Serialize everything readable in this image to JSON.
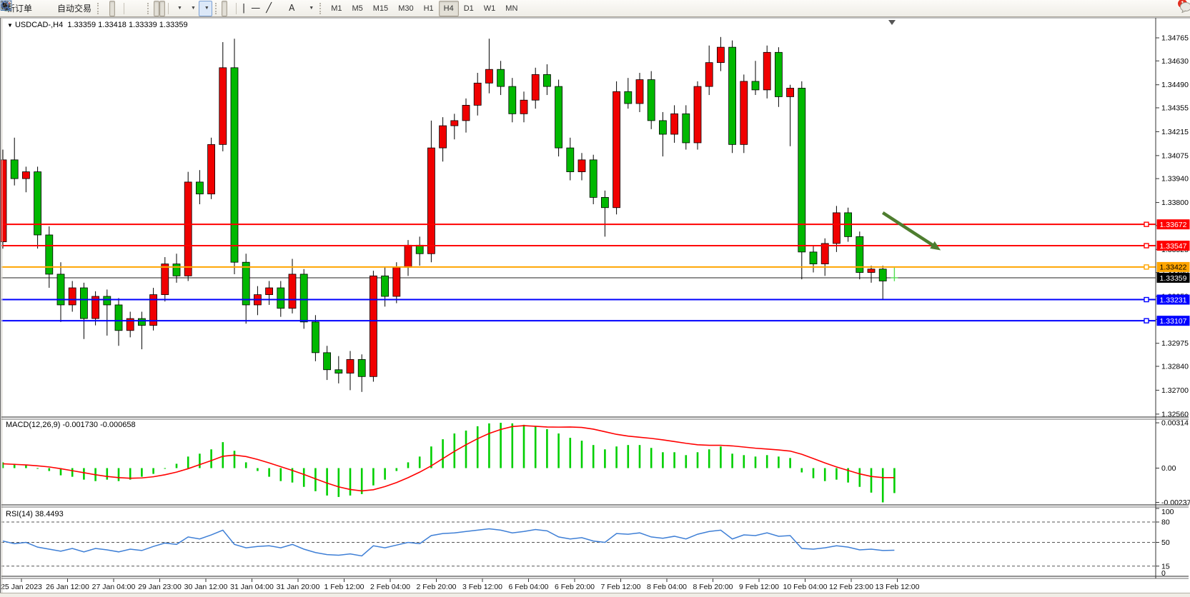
{
  "toolbar": {
    "new_order_label": "新订单",
    "auto_trading_label": "自动交易",
    "timeframes": [
      "M1",
      "M5",
      "M15",
      "M30",
      "H1",
      "H4",
      "D1",
      "W1",
      "MN"
    ],
    "active_timeframe": "H4",
    "notification_badge": "1"
  },
  "chart": {
    "title": "USDCAD-,H4",
    "ohlc_text": "1.33359 1.33418 1.33339 1.33359"
  },
  "macd": {
    "label": "MACD(12,26,9)",
    "value_text": "-0.001730 -0.000658",
    "axis_max": "0.00314",
    "axis_zero": "0.00",
    "axis_min": "-0.002376"
  },
  "rsi": {
    "label": "RSI(14)",
    "value_text": "38.4493",
    "axis_labels": [
      "100",
      "80",
      "50",
      "15",
      "0"
    ]
  },
  "colors": {
    "bull": "#F00000",
    "bear": "#00B800",
    "doji": "#55DD55",
    "wick": "#000000",
    "macd_hist": "#00CF00",
    "macd_signal": "#FF0000",
    "rsi_line": "#3E7FD6",
    "arrow": "#4E7D2F",
    "line_red": "#FF0000",
    "line_orange": "#FFA500",
    "line_blue": "#0000FF",
    "current_bg": "#000000",
    "axis_text": "#000000"
  },
  "chart_data": {
    "type": "candlestick",
    "symbol": "USDCAD-",
    "period": "H4",
    "current_price": 1.33359,
    "current_price_label": "1.33359",
    "price_axis_ticks": [
      "1.34765",
      "1.34630",
      "1.34490",
      "1.34355",
      "1.34215",
      "1.34075",
      "1.33940",
      "1.33800",
      "1.33665",
      "1.33525",
      "1.33390",
      "1.33250",
      "1.33115",
      "1.32975",
      "1.32840",
      "1.32700",
      "1.32560"
    ],
    "time_labels": [
      "25 Jan 2023",
      "26 Jan 12:00",
      "27 Jan 04:00",
      "29 Jan 23:00",
      "30 Jan 12:00",
      "31 Jan 04:00",
      "31 Jan 20:00",
      "1 Feb 12:00",
      "2 Feb 04:00",
      "2 Feb 20:00",
      "3 Feb 12:00",
      "6 Feb 04:00",
      "6 Feb 20:00",
      "7 Feb 12:00",
      "8 Feb 04:00",
      "8 Feb 20:00",
      "9 Feb 12:00",
      "10 Feb 04:00",
      "12 Feb 23:00",
      "13 Feb 12:00"
    ],
    "hlines": [
      {
        "price": 1.33672,
        "label": "1.33672",
        "color": "#FF0000",
        "text_color": "#FFFFFF"
      },
      {
        "price": 1.33547,
        "label": "1.33547",
        "color": "#FF0000",
        "text_color": "#FFFFFF"
      },
      {
        "price": 1.33422,
        "label": "1.33422",
        "color": "#FFA500",
        "text_color": "#000000"
      },
      {
        "price": 1.33231,
        "label": "1.33231",
        "color": "#0000FF",
        "text_color": "#FFFFFF"
      },
      {
        "price": 1.33107,
        "label": "1.33107",
        "color": "#0000FF",
        "text_color": "#FFFFFF"
      }
    ],
    "arrow": {
      "from_bar": 76.0,
      "from_price": 1.3374,
      "to_bar": 81.0,
      "to_price": 1.3352
    },
    "candles": [
      [
        1.3357,
        1.3411,
        1.3353,
        1.3405
      ],
      [
        1.3405,
        1.3418,
        1.339,
        1.3394
      ],
      [
        1.3394,
        1.3401,
        1.3386,
        1.3398
      ],
      [
        1.3398,
        1.3401,
        1.3353,
        1.3361
      ],
      [
        1.3361,
        1.3366,
        1.333,
        1.3338
      ],
      [
        1.3338,
        1.3345,
        1.331,
        1.332
      ],
      [
        1.332,
        1.3334,
        1.3316,
        1.333
      ],
      [
        1.333,
        1.3333,
        1.33,
        1.3312
      ],
      [
        1.3312,
        1.3328,
        1.3308,
        1.3325
      ],
      [
        1.3325,
        1.3329,
        1.3302,
        1.332
      ],
      [
        1.332,
        1.3324,
        1.3296,
        1.3305
      ],
      [
        1.3305,
        1.3316,
        1.3301,
        1.3312
      ],
      [
        1.3312,
        1.3316,
        1.3294,
        1.3308
      ],
      [
        1.3308,
        1.333,
        1.3305,
        1.3326
      ],
      [
        1.3326,
        1.3348,
        1.3322,
        1.3344
      ],
      [
        1.3344,
        1.335,
        1.3333,
        1.3337
      ],
      [
        1.3337,
        1.3398,
        1.3334,
        1.3392
      ],
      [
        1.3392,
        1.3399,
        1.3379,
        1.3385
      ],
      [
        1.3385,
        1.3418,
        1.3382,
        1.3414
      ],
      [
        1.3414,
        1.3474,
        1.341,
        1.3459
      ],
      [
        1.3459,
        1.3476,
        1.3338,
        1.3345
      ],
      [
        1.3345,
        1.335,
        1.3309,
        1.332
      ],
      [
        1.332,
        1.3331,
        1.3314,
        1.3326
      ],
      [
        1.3326,
        1.3334,
        1.332,
        1.333
      ],
      [
        1.333,
        1.3334,
        1.3313,
        1.3318
      ],
      [
        1.3318,
        1.3347,
        1.3315,
        1.3338
      ],
      [
        1.3338,
        1.3341,
        1.3306,
        1.331
      ],
      [
        1.331,
        1.3314,
        1.3287,
        1.3292
      ],
      [
        1.3292,
        1.3296,
        1.3276,
        1.3282
      ],
      [
        1.3282,
        1.329,
        1.3274,
        1.328
      ],
      [
        1.328,
        1.3293,
        1.327,
        1.3288
      ],
      [
        1.3288,
        1.3291,
        1.3269,
        1.3278
      ],
      [
        1.3278,
        1.334,
        1.3275,
        1.3337
      ],
      [
        1.3337,
        1.3342,
        1.3319,
        1.3325
      ],
      [
        1.3325,
        1.3345,
        1.3321,
        1.3342
      ],
      [
        1.3342,
        1.3358,
        1.3337,
        1.3355
      ],
      [
        1.3355,
        1.336,
        1.3343,
        1.335
      ],
      [
        1.335,
        1.3428,
        1.3345,
        1.3412
      ],
      [
        1.3412,
        1.343,
        1.3404,
        1.3425
      ],
      [
        1.3425,
        1.3432,
        1.3417,
        1.3428
      ],
      [
        1.3428,
        1.3441,
        1.3421,
        1.3437
      ],
      [
        1.3437,
        1.3456,
        1.3431,
        1.345
      ],
      [
        1.345,
        1.3476,
        1.3444,
        1.3458
      ],
      [
        1.3458,
        1.3463,
        1.3443,
        1.3448
      ],
      [
        1.3448,
        1.3453,
        1.3427,
        1.3432
      ],
      [
        1.3432,
        1.3445,
        1.3427,
        1.344
      ],
      [
        1.344,
        1.3459,
        1.3435,
        1.3455
      ],
      [
        1.3455,
        1.3461,
        1.3443,
        1.3448
      ],
      [
        1.3448,
        1.3452,
        1.3407,
        1.3412
      ],
      [
        1.3412,
        1.3418,
        1.3393,
        1.3398
      ],
      [
        1.3398,
        1.3409,
        1.3393,
        1.3405
      ],
      [
        1.3405,
        1.3408,
        1.3379,
        1.3383
      ],
      [
        1.3383,
        1.3387,
        1.336,
        1.3377
      ],
      [
        1.3377,
        1.3451,
        1.3373,
        1.3445
      ],
      [
        1.3445,
        1.3453,
        1.3435,
        1.3438
      ],
      [
        1.3438,
        1.3456,
        1.3433,
        1.3452
      ],
      [
        1.3452,
        1.3457,
        1.3423,
        1.3428
      ],
      [
        1.3428,
        1.3433,
        1.3407,
        1.342
      ],
      [
        1.342,
        1.3437,
        1.3415,
        1.3432
      ],
      [
        1.3432,
        1.3437,
        1.3411,
        1.3415
      ],
      [
        1.3415,
        1.3451,
        1.3411,
        1.3448
      ],
      [
        1.3448,
        1.3472,
        1.3443,
        1.3462
      ],
      [
        1.3462,
        1.3477,
        1.3457,
        1.3471
      ],
      [
        1.3471,
        1.3475,
        1.3409,
        1.3414
      ],
      [
        1.3414,
        1.3455,
        1.3409,
        1.3451
      ],
      [
        1.3451,
        1.3463,
        1.3443,
        1.3446
      ],
      [
        1.3446,
        1.3472,
        1.3441,
        1.3468
      ],
      [
        1.3468,
        1.3471,
        1.3436,
        1.3442
      ],
      [
        1.3442,
        1.3449,
        1.3413,
        1.3447
      ],
      [
        1.3447,
        1.3451,
        1.3335,
        1.3351
      ],
      [
        1.3351,
        1.3355,
        1.3339,
        1.3344
      ],
      [
        1.3344,
        1.3359,
        1.3337,
        1.3356
      ],
      [
        1.3356,
        1.3378,
        1.3351,
        1.3374
      ],
      [
        1.3374,
        1.3377,
        1.3357,
        1.336
      ],
      [
        1.336,
        1.3363,
        1.3335,
        1.3339
      ],
      [
        1.3339,
        1.3343,
        1.3333,
        1.3341
      ],
      [
        1.3341,
        1.3343,
        1.3323,
        1.3334
      ],
      [
        1.33359,
        1.33418,
        1.33339,
        1.33359
      ]
    ],
    "macd_hist": [
      0.0004,
      0.0003,
      0.0002,
      0.0,
      -0.0002,
      -0.0005,
      -0.0006,
      -0.0008,
      -0.0009,
      -0.0008,
      -0.0009,
      -0.0008,
      -0.0006,
      -0.0004,
      0.0,
      0.0003,
      0.0008,
      0.001,
      0.0013,
      0.0018,
      0.0012,
      0.0004,
      -0.0002,
      -0.0006,
      -0.0009,
      -0.001,
      -0.0013,
      -0.0016,
      -0.0019,
      -0.002,
      -0.0019,
      -0.0018,
      -0.0012,
      -0.0008,
      -0.0002,
      0.0004,
      0.0008,
      0.0015,
      0.002,
      0.0024,
      0.0026,
      0.0029,
      0.0031,
      0.00314,
      0.0031,
      0.003,
      0.0029,
      0.0027,
      0.0024,
      0.0021,
      0.0019,
      0.0016,
      0.0013,
      0.0015,
      0.0016,
      0.0016,
      0.0014,
      0.0011,
      0.0011,
      0.0009,
      0.0011,
      0.0013,
      0.0015,
      0.001,
      0.0009,
      0.0008,
      0.0009,
      0.0008,
      0.0007,
      -0.0003,
      -0.0007,
      -0.0009,
      -0.0008,
      -0.001,
      -0.0013,
      -0.0017,
      -0.002376,
      -0.00173
    ],
    "macd_signal": [
      0.0003,
      0.00026,
      0.00022,
      0.00016,
      8e-05,
      -4e-05,
      -0.00018,
      -0.00032,
      -0.00046,
      -0.00058,
      -0.00066,
      -0.0007,
      -0.00068,
      -0.0006,
      -0.00046,
      -0.00028,
      -4e-05,
      0.00024,
      0.00052,
      0.00082,
      0.0009,
      0.0008,
      0.0006,
      0.00036,
      0.0001,
      -0.00016,
      -0.00044,
      -0.00074,
      -0.00104,
      -0.0013,
      -0.00148,
      -0.00158,
      -0.0015,
      -0.00128,
      -0.001,
      -0.00066,
      -0.00028,
      0.00016,
      0.00066,
      0.00116,
      0.00162,
      0.00204,
      0.0024,
      0.00268,
      0.00288,
      0.00294,
      0.0029,
      0.00285,
      0.00284,
      0.00285,
      0.00282,
      0.0027,
      0.00252,
      0.00234,
      0.00222,
      0.00214,
      0.00206,
      0.00196,
      0.00184,
      0.00172,
      0.00162,
      0.00158,
      0.00158,
      0.00154,
      0.00146,
      0.00138,
      0.00132,
      0.00126,
      0.00118,
      0.00096,
      0.00066,
      0.00036,
      8e-05,
      -0.00016,
      -0.0004,
      -0.00058,
      -0.00066,
      -0.000658
    ],
    "rsi_values": [
      52,
      48,
      50,
      43,
      40,
      37,
      41,
      36,
      41,
      39,
      36,
      40,
      38,
      44,
      49,
      47,
      58,
      55,
      61,
      68,
      47,
      42,
      44,
      45,
      42,
      47,
      40,
      35,
      32,
      31,
      33,
      30,
      45,
      42,
      46,
      50,
      48,
      60,
      63,
      64,
      66,
      68,
      70,
      68,
      64,
      66,
      69,
      67,
      58,
      55,
      57,
      52,
      50,
      63,
      62,
      64,
      58,
      56,
      59,
      55,
      62,
      66,
      68,
      55,
      61,
      60,
      64,
      59,
      60,
      41,
      40,
      42,
      45,
      43,
      39,
      40,
      38,
      38.4493
    ],
    "rsi_levels": [
      80,
      50,
      15
    ]
  }
}
